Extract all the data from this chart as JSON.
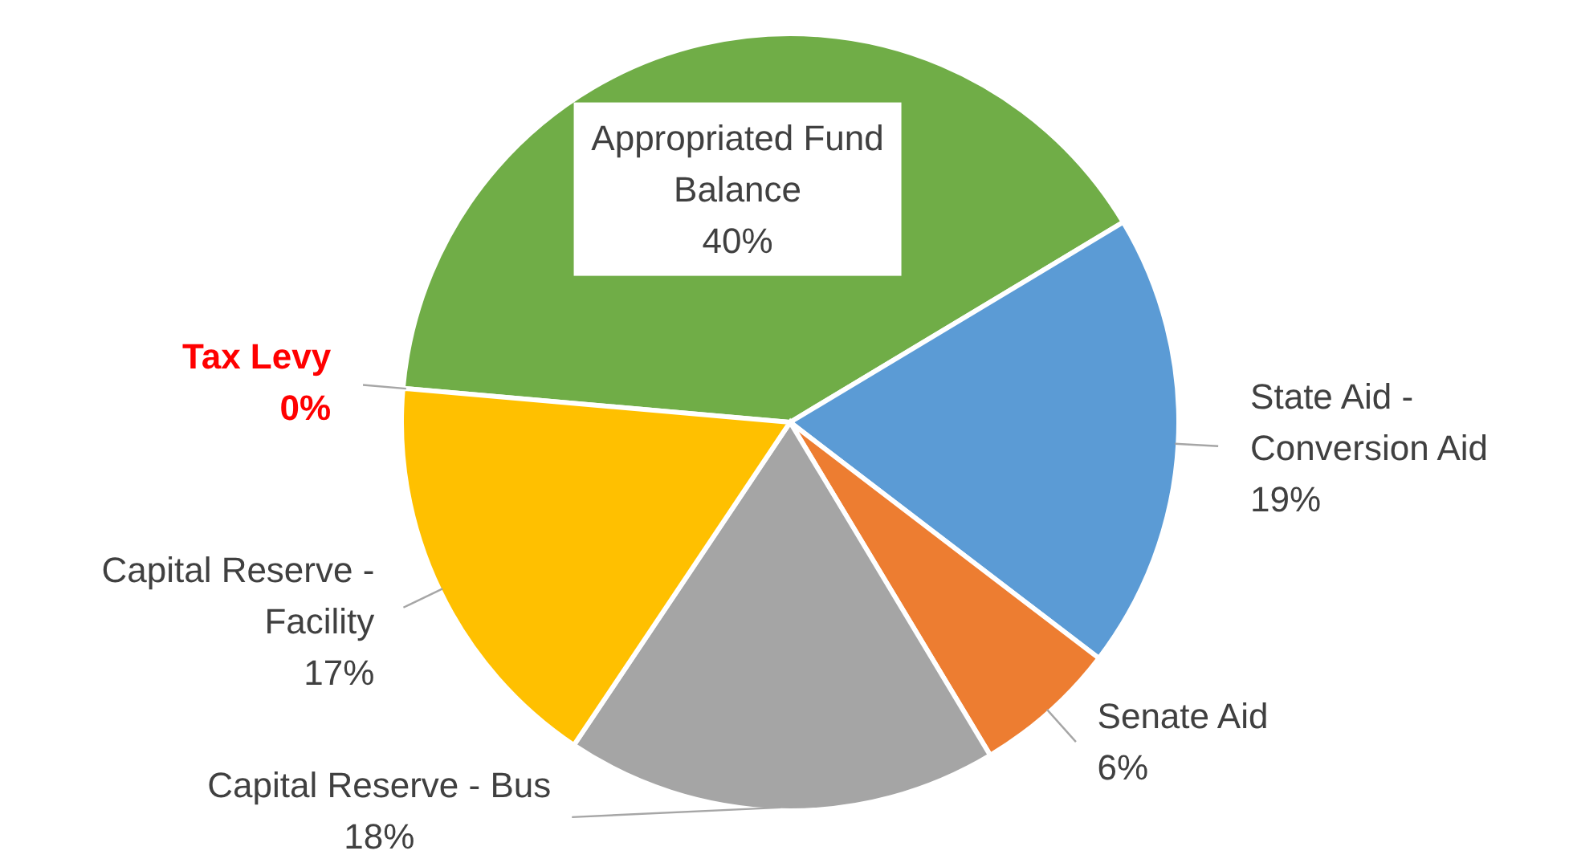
{
  "chart_data": {
    "type": "pie",
    "categories": [
      "Appropriated Fund Balance",
      "State Aid - Conversion Aid",
      "Senate Aid",
      "Capital Reserve - Bus",
      "Capital Reserve - Facility",
      "Tax Levy"
    ],
    "values": [
      40,
      19,
      6,
      18,
      17,
      0
    ],
    "colors": [
      "#70ad47",
      "#5b9bd5",
      "#ed7d31",
      "#a5a5a5",
      "#ffc000",
      "#ff0000"
    ],
    "value_labels": [
      "40%",
      "19%",
      "6%",
      "18%",
      "17%",
      "0%"
    ],
    "legend": false
  }
}
